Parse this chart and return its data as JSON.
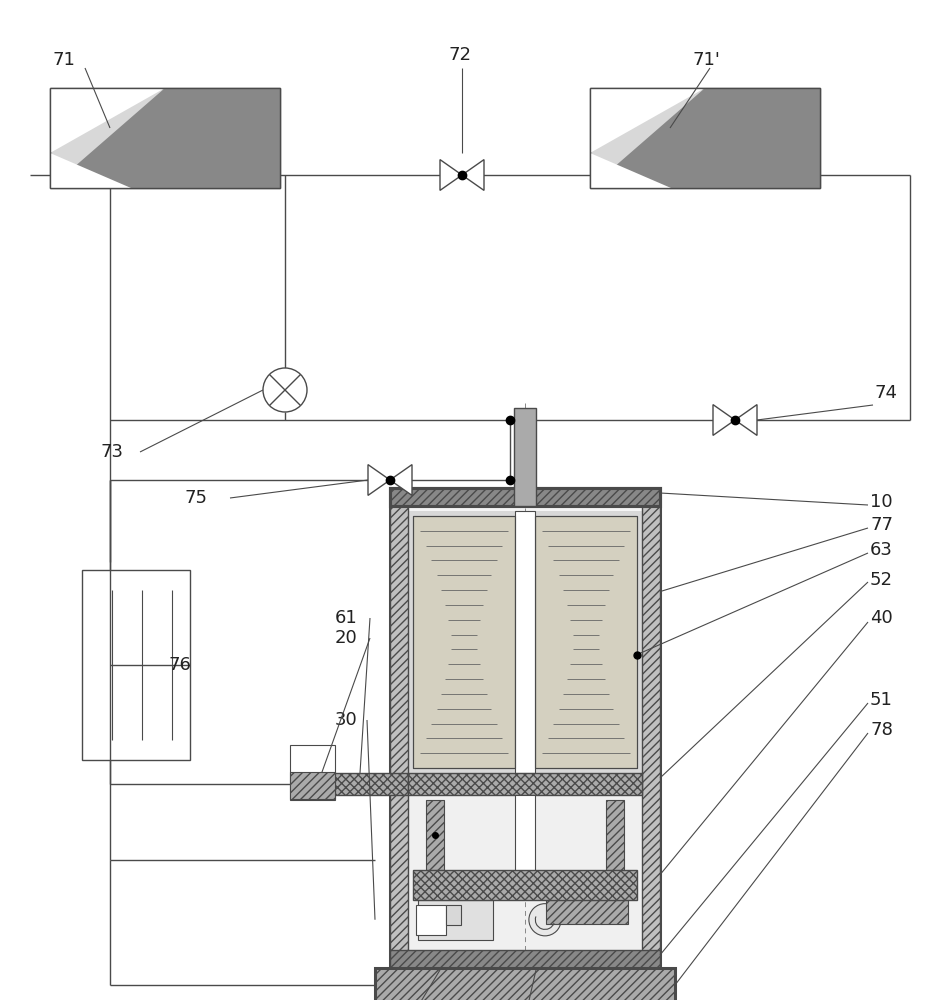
{
  "bg_color": "#ffffff",
  "line_color": "#4a4a4a",
  "figsize": [
    9.42,
    10.0
  ],
  "dpi": 100,
  "lw_main": 1.0,
  "lw_thick": 2.2,
  "gray_light": "#d8d8d8",
  "gray_med": "#aaaaaa",
  "gray_dark": "#888888",
  "gray_fill": "#c0c0c0",
  "white": "#ffffff",
  "hatch_dense": "////",
  "hatch_cross": "xxxx"
}
